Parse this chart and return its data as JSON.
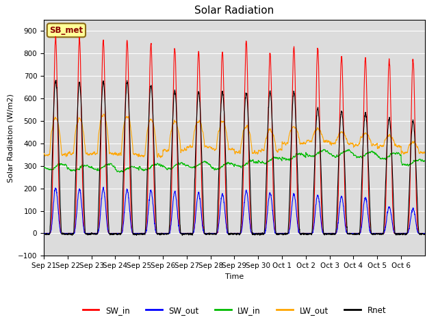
{
  "title": "Solar Radiation",
  "ylabel": "Solar Radiation (W/m2)",
  "xlabel": "Time",
  "ylim": [
    -100,
    950
  ],
  "yticks": [
    -100,
    0,
    100,
    200,
    300,
    400,
    500,
    600,
    700,
    800,
    900
  ],
  "annotation": "SB_met",
  "annotation_color": "#8B0000",
  "annotation_bg": "#FFFF99",
  "x_labels": [
    "Sep 21",
    "Sep 22",
    "Sep 23",
    "Sep 24",
    "Sep 25",
    "Sep 26",
    "Sep 27",
    "Sep 28",
    "Sep 29",
    "Sep 30",
    "Oct 1",
    "Oct 2",
    "Oct 3",
    "Oct 4",
    "Oct 5",
    "Oct 6"
  ],
  "colors": {
    "SW_in": "#FF0000",
    "SW_out": "#0000FF",
    "LW_in": "#00BB00",
    "LW_out": "#FFA500",
    "Rnet": "#000000"
  },
  "background_color": "#DCDCDC",
  "figure_bg": "#FFFFFF",
  "n_days": 16,
  "points_per_day": 144,
  "sw_peaks": [
    870,
    865,
    860,
    860,
    840,
    825,
    810,
    808,
    855,
    800,
    825,
    825,
    790,
    780,
    770,
    775
  ],
  "sw_out_peaks": [
    200,
    195,
    200,
    195,
    190,
    185,
    180,
    175,
    190,
    180,
    175,
    170,
    165,
    160,
    120,
    110
  ],
  "lw_in_base": [
    295,
    290,
    295,
    285,
    295,
    300,
    305,
    300,
    310,
    325,
    340,
    355,
    355,
    350,
    345,
    315
  ],
  "lw_out_base": [
    350,
    355,
    355,
    350,
    345,
    370,
    385,
    375,
    360,
    370,
    400,
    410,
    400,
    395,
    385,
    360
  ],
  "lw_out_day_extra": [
    165,
    155,
    175,
    175,
    160,
    125,
    115,
    120,
    115,
    90,
    75,
    55,
    50,
    50,
    50,
    45
  ],
  "rnet_peaks": [
    680,
    670,
    675,
    675,
    660,
    635,
    630,
    630,
    625,
    630,
    630,
    555,
    545,
    535,
    510,
    500
  ]
}
